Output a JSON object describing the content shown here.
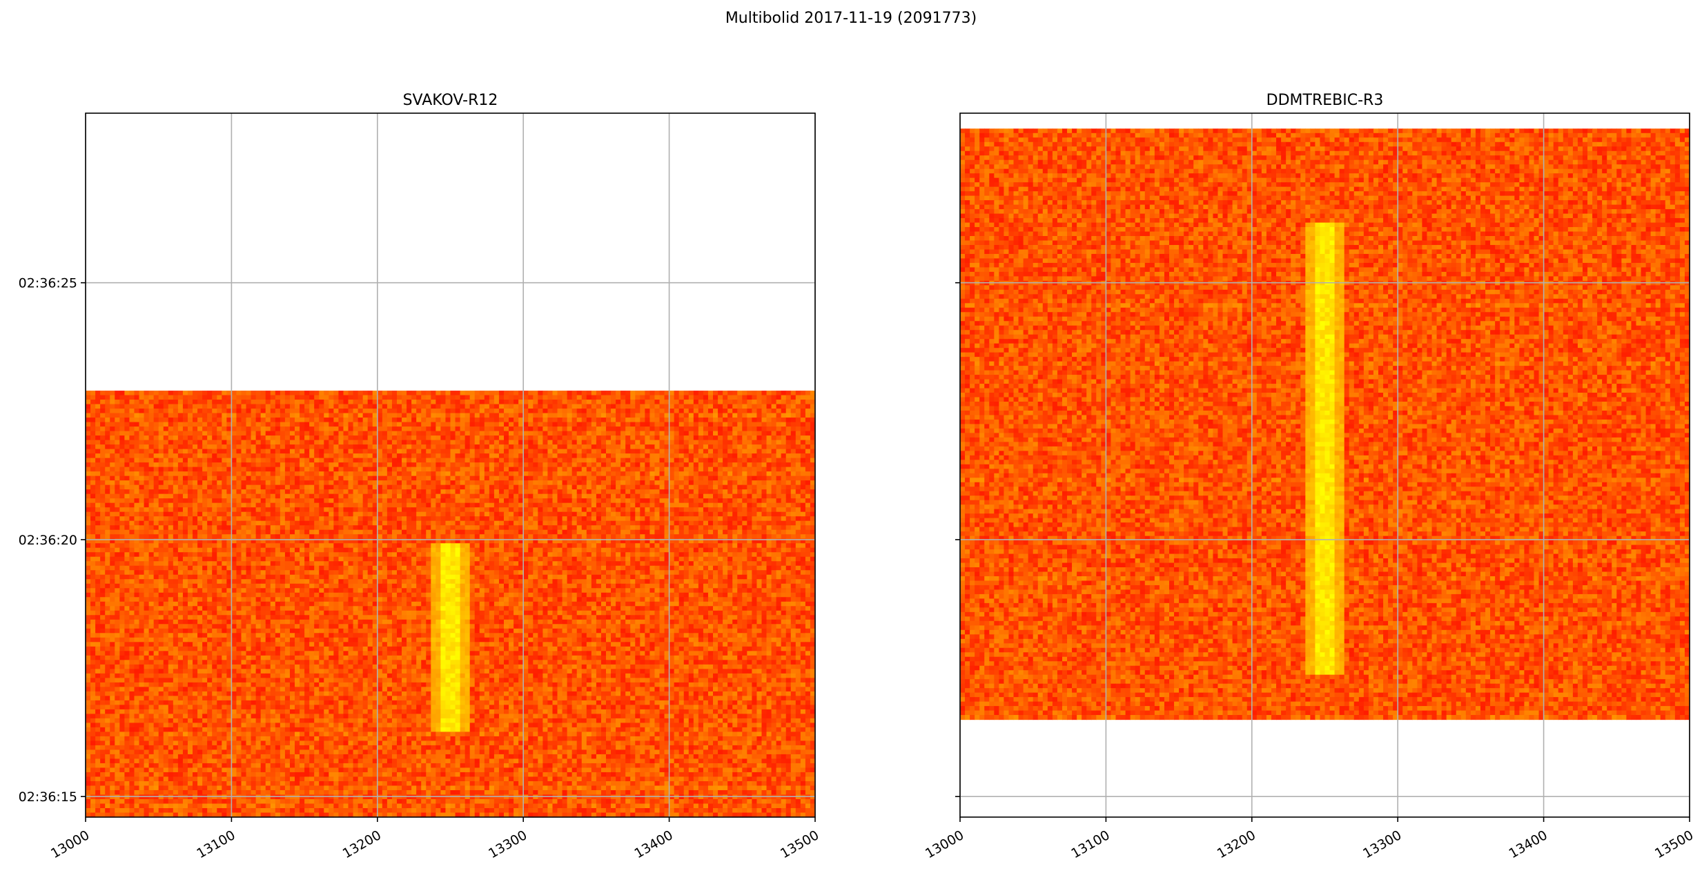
{
  "figure": {
    "suptitle": "Multibolid 2017-11-19 (2091773)"
  },
  "chart_data": [
    {
      "type": "heatmap",
      "title": "SVAKOV-R12",
      "x_range": [
        13000,
        13500
      ],
      "x_ticks": [
        "13000",
        "13100",
        "13200",
        "13300",
        "13400",
        "13500"
      ],
      "x_tick_values": [
        13000,
        13100,
        13200,
        13300,
        13400,
        13500
      ],
      "y_range": [
        "02:36:14.6",
        "02:36:28.3"
      ],
      "y_ticks": [
        "02:36:15",
        "02:36:20",
        "02:36:25"
      ],
      "y_tick_values": [
        15,
        20,
        25
      ],
      "y_tick_labels_visible": true,
      "data_extent": {
        "x": [
          13000,
          13500
        ],
        "y": [
          14.6,
          22.9
        ]
      },
      "signal": {
        "freq": 13250,
        "y_start": 16.3,
        "y_end": 19.9
      },
      "grid": true,
      "colormap": "autumn"
    },
    {
      "type": "heatmap",
      "title": "DDMTREBIC-R3",
      "x_range": [
        13000,
        13500
      ],
      "x_ticks": [
        "13000",
        "13100",
        "13200",
        "13300",
        "13400",
        "13500"
      ],
      "x_tick_values": [
        13000,
        13100,
        13200,
        13300,
        13400,
        13500
      ],
      "y_range": [
        "02:36:14.6",
        "02:36:28.3"
      ],
      "y_ticks": [
        "02:36:15",
        "02:36:20",
        "02:36:25"
      ],
      "y_tick_values": [
        15,
        20,
        25
      ],
      "y_tick_labels_visible": false,
      "data_extent": {
        "x": [
          13000,
          13500
        ],
        "y": [
          16.5,
          28.0
        ]
      },
      "signal": {
        "freq": 13250,
        "y_start": 17.4,
        "y_end": 26.2
      },
      "grid": true,
      "colormap": "autumn"
    }
  ]
}
